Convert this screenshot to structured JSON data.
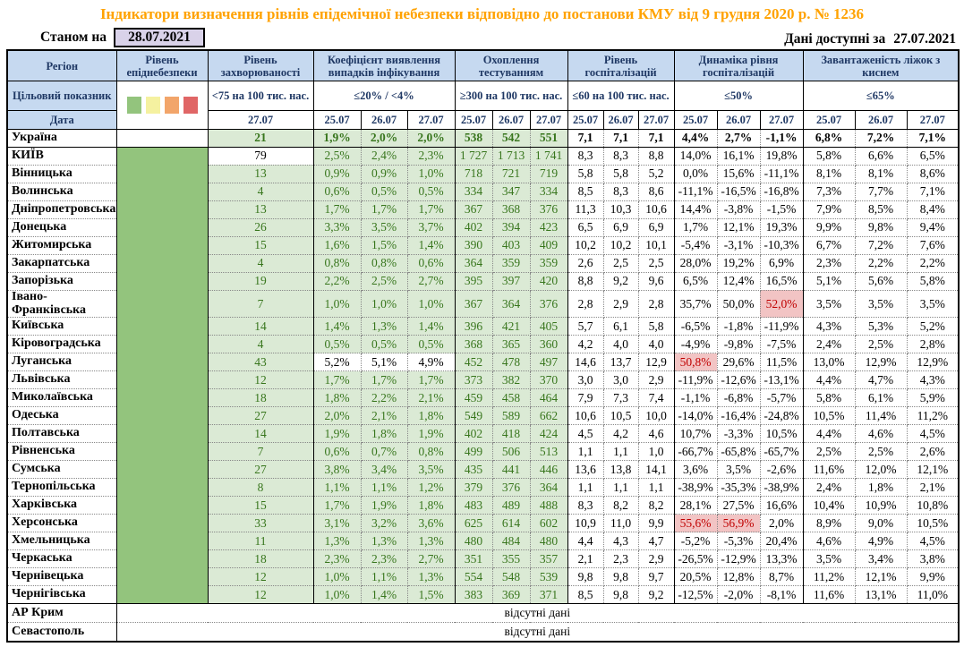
{
  "title": "Індикатори визначення рівнів епідемічної небезпеки відповідно до постанови КМУ від 9 грудня 2020 р. № 1236",
  "as_of": {
    "label": "Станом на",
    "date": "28.07.2021"
  },
  "data_available": {
    "label": "Дані доступні за",
    "date": "27.07.2021"
  },
  "columns": {
    "region": "Регіон",
    "target_row_label": "Цільовий показник",
    "date_row_label": "Дата",
    "groups": [
      {
        "id": "epid_level",
        "label": "Рівень епіднебезпеки",
        "target": "",
        "dates": []
      },
      {
        "id": "morbidity",
        "label": "Рівень захворюваності",
        "target": "<75 на 100 тис. нас.",
        "dates": [
          "27.07"
        ]
      },
      {
        "id": "detection",
        "label": "Коефіцієнт виявлення випадків інфікування",
        "target": "≤20% / <4%",
        "dates": [
          "25.07",
          "26.07",
          "27.07"
        ]
      },
      {
        "id": "testing",
        "label": "Охоплення тестуванням",
        "target": "≥300 на 100 тис. нас.",
        "dates": [
          "25.07",
          "26.07",
          "27.07"
        ]
      },
      {
        "id": "hospitalization",
        "label": "Рівень госпіталізацій",
        "target": "≤60 на 100 тис. нас.",
        "dates": [
          "25.07",
          "26.07",
          "27.07"
        ]
      },
      {
        "id": "hosp_dynamics",
        "label": "Динаміка рівня госпіталізацій",
        "target": "≤50%",
        "dates": [
          "25.07",
          "26.07",
          "27.07"
        ]
      },
      {
        "id": "oxygen_beds",
        "label": "Завантаженість ліжок з киснем",
        "target": "≤65%",
        "dates": [
          "25.07",
          "26.07",
          "27.07"
        ]
      }
    ]
  },
  "legend_colors": [
    "#93c47d",
    "#f5f1a0",
    "#f2a56a",
    "#e06666"
  ],
  "colors": {
    "title_color": "#ffa200",
    "header_bg": "#c6d9f0",
    "header_text": "#1f3864",
    "epid_green": "#93c47d",
    "cell_green_bg": "#dbead5",
    "green_text": "#38761d",
    "alert_bg": "#f2c4c4",
    "alert_text": "#c00000",
    "date_chip_bg": "#d9d2e9"
  },
  "rows": [
    {
      "region": "Україна",
      "bold": true,
      "epid_white": true,
      "morbidity": "21",
      "detection": [
        "1,9%",
        "2,0%",
        "2,0%"
      ],
      "testing": [
        "538",
        "542",
        "551"
      ],
      "hospital": [
        "7,1",
        "7,1",
        "7,1"
      ],
      "dynamics": [
        "4,4%",
        "2,7%",
        "-1,1%"
      ],
      "oxygen": [
        "6,8%",
        "7,2%",
        "7,1%"
      ]
    },
    {
      "region": "КИЇВ",
      "morb_white": true,
      "morbidity": "79",
      "detection": [
        "2,5%",
        "2,4%",
        "2,3%"
      ],
      "testing": [
        "1 727",
        "1 713",
        "1 741"
      ],
      "hospital": [
        "8,3",
        "8,3",
        "8,8"
      ],
      "dynamics": [
        "14,0%",
        "16,1%",
        "19,8%"
      ],
      "oxygen": [
        "5,8%",
        "6,6%",
        "6,5%"
      ]
    },
    {
      "region": "Вінницька",
      "morbidity": "13",
      "detection": [
        "0,9%",
        "0,9%",
        "1,0%"
      ],
      "testing": [
        "718",
        "721",
        "719"
      ],
      "hospital": [
        "5,8",
        "5,8",
        "5,2"
      ],
      "dynamics": [
        "0,0%",
        "15,6%",
        "-11,1%"
      ],
      "oxygen": [
        "8,1%",
        "8,1%",
        "8,6%"
      ]
    },
    {
      "region": "Волинська",
      "morbidity": "4",
      "detection": [
        "0,6%",
        "0,5%",
        "0,5%"
      ],
      "testing": [
        "334",
        "347",
        "334"
      ],
      "hospital": [
        "8,5",
        "8,3",
        "8,6"
      ],
      "dynamics": [
        "-11,1%",
        "-16,5%",
        "-16,8%"
      ],
      "oxygen": [
        "7,3%",
        "7,7%",
        "7,1%"
      ]
    },
    {
      "region": "Дніпропетровська",
      "morbidity": "13",
      "detection": [
        "1,7%",
        "1,7%",
        "1,7%"
      ],
      "testing": [
        "367",
        "368",
        "376"
      ],
      "hospital": [
        "11,3",
        "10,3",
        "10,6"
      ],
      "dynamics": [
        "14,4%",
        "-3,8%",
        "-1,5%"
      ],
      "oxygen": [
        "7,9%",
        "8,5%",
        "8,4%"
      ]
    },
    {
      "region": "Донецька",
      "morbidity": "26",
      "detection": [
        "3,3%",
        "3,5%",
        "3,7%"
      ],
      "testing": [
        "402",
        "394",
        "423"
      ],
      "hospital": [
        "6,5",
        "6,9",
        "6,9"
      ],
      "dynamics": [
        "1,7%",
        "12,1%",
        "19,3%"
      ],
      "oxygen": [
        "9,9%",
        "9,8%",
        "9,4%"
      ]
    },
    {
      "region": "Житомирська",
      "morbidity": "15",
      "detection": [
        "1,6%",
        "1,5%",
        "1,4%"
      ],
      "testing": [
        "390",
        "403",
        "409"
      ],
      "hospital": [
        "10,2",
        "10,2",
        "10,1"
      ],
      "dynamics": [
        "-5,4%",
        "-3,1%",
        "-10,3%"
      ],
      "oxygen": [
        "6,7%",
        "7,2%",
        "7,6%"
      ]
    },
    {
      "region": "Закарпатська",
      "morbidity": "4",
      "detection": [
        "0,8%",
        "0,8%",
        "0,6%"
      ],
      "testing": [
        "364",
        "359",
        "359"
      ],
      "hospital": [
        "2,6",
        "2,5",
        "2,5"
      ],
      "dynamics": [
        "28,0%",
        "19,2%",
        "6,9%"
      ],
      "oxygen": [
        "2,3%",
        "2,2%",
        "2,2%"
      ]
    },
    {
      "region": "Запорізька",
      "morbidity": "19",
      "detection": [
        "2,2%",
        "2,5%",
        "2,7%"
      ],
      "testing": [
        "395",
        "397",
        "420"
      ],
      "hospital": [
        "8,8",
        "9,2",
        "9,6"
      ],
      "dynamics": [
        "6,5%",
        "12,4%",
        "16,5%"
      ],
      "oxygen": [
        "5,1%",
        "5,6%",
        "5,8%"
      ]
    },
    {
      "region": "Івано-\nФранківська",
      "morbidity": "7",
      "detection": [
        "1,0%",
        "1,0%",
        "1,0%"
      ],
      "testing": [
        "367",
        "364",
        "376"
      ],
      "hospital": [
        "2,8",
        "2,9",
        "2,8"
      ],
      "dynamics": [
        "35,7%",
        "50,0%",
        "52,0%"
      ],
      "dyn_red": [
        false,
        false,
        true
      ],
      "oxygen": [
        "3,5%",
        "3,5%",
        "3,5%"
      ]
    },
    {
      "region": "Київська",
      "morbidity": "14",
      "detection": [
        "1,4%",
        "1,3%",
        "1,4%"
      ],
      "testing": [
        "396",
        "421",
        "405"
      ],
      "hospital": [
        "5,7",
        "6,1",
        "5,8"
      ],
      "dynamics": [
        "-6,5%",
        "-1,8%",
        "-11,9%"
      ],
      "oxygen": [
        "4,3%",
        "5,3%",
        "5,2%"
      ]
    },
    {
      "region": "Кіровоградська",
      "morbidity": "4",
      "detection": [
        "0,5%",
        "0,5%",
        "0,5%"
      ],
      "testing": [
        "368",
        "365",
        "360"
      ],
      "hospital": [
        "4,2",
        "4,0",
        "4,0"
      ],
      "dynamics": [
        "-4,9%",
        "-9,8%",
        "-7,5%"
      ],
      "oxygen": [
        "2,4%",
        "2,5%",
        "2,8%"
      ]
    },
    {
      "region": "Луганська",
      "det_white": true,
      "morbidity": "43",
      "detection": [
        "5,2%",
        "5,1%",
        "4,9%"
      ],
      "testing": [
        "452",
        "478",
        "497"
      ],
      "hospital": [
        "14,6",
        "13,7",
        "12,9"
      ],
      "dynamics": [
        "50,8%",
        "29,6%",
        "11,5%"
      ],
      "dyn_red": [
        true,
        false,
        false
      ],
      "oxygen": [
        "13,0%",
        "12,9%",
        "12,9%"
      ]
    },
    {
      "region": "Львівська",
      "morbidity": "12",
      "detection": [
        "1,7%",
        "1,7%",
        "1,7%"
      ],
      "testing": [
        "373",
        "382",
        "370"
      ],
      "hospital": [
        "3,0",
        "3,0",
        "2,9"
      ],
      "dynamics": [
        "-11,9%",
        "-12,6%",
        "-13,1%"
      ],
      "oxygen": [
        "4,4%",
        "4,7%",
        "4,3%"
      ]
    },
    {
      "region": "Миколаївська",
      "morbidity": "18",
      "detection": [
        "1,8%",
        "2,2%",
        "2,1%"
      ],
      "testing": [
        "459",
        "458",
        "464"
      ],
      "hospital": [
        "7,9",
        "7,3",
        "7,4"
      ],
      "dynamics": [
        "-1,1%",
        "-6,8%",
        "-5,7%"
      ],
      "oxygen": [
        "5,8%",
        "6,1%",
        "5,9%"
      ]
    },
    {
      "region": "Одеська",
      "morbidity": "27",
      "detection": [
        "2,0%",
        "2,1%",
        "1,8%"
      ],
      "testing": [
        "549",
        "589",
        "662"
      ],
      "hospital": [
        "10,6",
        "10,5",
        "10,0"
      ],
      "dynamics": [
        "-14,0%",
        "-16,4%",
        "-24,8%"
      ],
      "oxygen": [
        "10,5%",
        "11,4%",
        "11,2%"
      ]
    },
    {
      "region": "Полтавська",
      "morbidity": "14",
      "detection": [
        "1,9%",
        "1,8%",
        "1,9%"
      ],
      "testing": [
        "402",
        "418",
        "424"
      ],
      "hospital": [
        "4,5",
        "4,2",
        "4,6"
      ],
      "dynamics": [
        "10,7%",
        "-3,3%",
        "10,5%"
      ],
      "oxygen": [
        "4,4%",
        "4,6%",
        "4,5%"
      ]
    },
    {
      "region": "Рівненська",
      "morbidity": "7",
      "detection": [
        "0,6%",
        "0,7%",
        "0,8%"
      ],
      "testing": [
        "499",
        "506",
        "513"
      ],
      "hospital": [
        "1,1",
        "1,1",
        "1,0"
      ],
      "dynamics": [
        "-66,7%",
        "-65,8%",
        "-65,7%"
      ],
      "oxygen": [
        "2,5%",
        "2,5%",
        "2,6%"
      ]
    },
    {
      "region": "Сумська",
      "morbidity": "27",
      "detection": [
        "3,8%",
        "3,4%",
        "3,5%"
      ],
      "testing": [
        "435",
        "441",
        "446"
      ],
      "hospital": [
        "13,6",
        "13,8",
        "14,1"
      ],
      "dynamics": [
        "3,6%",
        "3,5%",
        "-2,6%"
      ],
      "oxygen": [
        "11,6%",
        "12,0%",
        "12,1%"
      ]
    },
    {
      "region": "Тернопільська",
      "morbidity": "8",
      "detection": [
        "1,1%",
        "1,1%",
        "1,2%"
      ],
      "testing": [
        "379",
        "376",
        "364"
      ],
      "hospital": [
        "1,1",
        "1,1",
        "1,1"
      ],
      "dynamics": [
        "-38,9%",
        "-35,3%",
        "-38,9%"
      ],
      "oxygen": [
        "2,4%",
        "1,8%",
        "2,1%"
      ]
    },
    {
      "region": "Харківська",
      "morbidity": "15",
      "detection": [
        "1,7%",
        "1,9%",
        "1,8%"
      ],
      "testing": [
        "483",
        "489",
        "488"
      ],
      "hospital": [
        "8,3",
        "8,2",
        "8,2"
      ],
      "dynamics": [
        "28,1%",
        "27,5%",
        "16,6%"
      ],
      "oxygen": [
        "10,4%",
        "10,9%",
        "10,8%"
      ]
    },
    {
      "region": "Херсонська",
      "morbidity": "33",
      "detection": [
        "3,1%",
        "3,2%",
        "3,6%"
      ],
      "testing": [
        "625",
        "614",
        "602"
      ],
      "hospital": [
        "10,9",
        "11,0",
        "9,9"
      ],
      "dynamics": [
        "55,6%",
        "56,9%",
        "2,0%"
      ],
      "dyn_red": [
        true,
        true,
        false
      ],
      "oxygen": [
        "8,9%",
        "9,0%",
        "10,5%"
      ]
    },
    {
      "region": "Хмельницька",
      "morbidity": "11",
      "detection": [
        "1,3%",
        "1,3%",
        "1,3%"
      ],
      "testing": [
        "480",
        "484",
        "480"
      ],
      "hospital": [
        "4,4",
        "4,3",
        "4,7"
      ],
      "dynamics": [
        "-5,2%",
        "-5,3%",
        "20,4%"
      ],
      "oxygen": [
        "4,6%",
        "4,9%",
        "4,5%"
      ]
    },
    {
      "region": "Черкаська",
      "morbidity": "18",
      "detection": [
        "2,3%",
        "2,3%",
        "2,7%"
      ],
      "testing": [
        "351",
        "355",
        "357"
      ],
      "hospital": [
        "2,1",
        "2,3",
        "2,9"
      ],
      "dynamics": [
        "-26,5%",
        "-12,9%",
        "13,3%"
      ],
      "oxygen": [
        "3,5%",
        "3,4%",
        "3,8%"
      ]
    },
    {
      "region": "Чернівецька",
      "morbidity": "12",
      "detection": [
        "1,0%",
        "1,1%",
        "1,3%"
      ],
      "testing": [
        "554",
        "548",
        "539"
      ],
      "hospital": [
        "9,8",
        "9,8",
        "9,7"
      ],
      "dynamics": [
        "20,5%",
        "12,8%",
        "8,7%"
      ],
      "oxygen": [
        "11,2%",
        "12,1%",
        "9,9%"
      ]
    },
    {
      "region": "Чернігівська",
      "morbidity": "12",
      "detection": [
        "1,0%",
        "1,4%",
        "1,5%"
      ],
      "testing": [
        "383",
        "369",
        "371"
      ],
      "hospital": [
        "8,5",
        "9,8",
        "9,2"
      ],
      "dynamics": [
        "-12,5%",
        "-2,0%",
        "-8,1%"
      ],
      "oxygen": [
        "11,6%",
        "13,1%",
        "11,0%"
      ]
    }
  ],
  "no_data_rows": [
    {
      "region": "АР Крим",
      "text": "відсутні дані"
    },
    {
      "region": "Севастополь",
      "text": "відсутні дані"
    }
  ]
}
